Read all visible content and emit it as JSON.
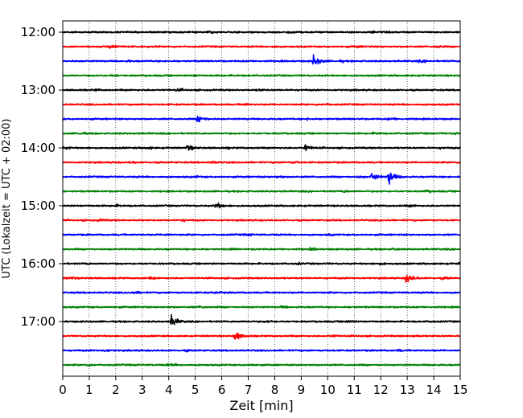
{
  "chart_data": {
    "type": "line",
    "title": "",
    "xlabel": "Zeit  [min]",
    "ylabel": "UTC (Lokalzeit = UTC + 02:00)",
    "xlim": [
      0,
      15
    ],
    "x_ticks": [
      0,
      1,
      2,
      3,
      4,
      5,
      6,
      7,
      8,
      9,
      10,
      11,
      12,
      13,
      14,
      15
    ],
    "y_ticks": [
      "12:00",
      "13:00",
      "14:00",
      "15:00",
      "16:00",
      "17:00"
    ],
    "grid": {
      "x": true,
      "y": false,
      "style": "dotted"
    },
    "trace_minutes": 15,
    "trace_colors": [
      "#000000",
      "#ff0000",
      "#0000ff",
      "#008000"
    ],
    "series": [
      {
        "start": "12:00",
        "color": "#000000",
        "events": []
      },
      {
        "start": "12:15",
        "color": "#ff0000",
        "events": [
          {
            "t": 1.75,
            "amp": 0.45
          }
        ]
      },
      {
        "start": "12:30",
        "color": "#0000ff",
        "events": [
          {
            "t": 9.45,
            "amp": 0.7
          }
        ]
      },
      {
        "start": "12:45",
        "color": "#008000",
        "events": []
      },
      {
        "start": "13:00",
        "color": "#000000",
        "events": []
      },
      {
        "start": "13:15",
        "color": "#ff0000",
        "events": []
      },
      {
        "start": "13:30",
        "color": "#0000ff",
        "events": [
          {
            "t": 5.1,
            "amp": 0.5
          }
        ]
      },
      {
        "start": "13:45",
        "color": "#008000",
        "events": []
      },
      {
        "start": "14:00",
        "color": "#000000",
        "events": [
          {
            "t": 4.7,
            "amp": 0.35
          },
          {
            "t": 9.15,
            "amp": 0.35
          }
        ]
      },
      {
        "start": "14:15",
        "color": "#ff0000",
        "events": []
      },
      {
        "start": "14:30",
        "color": "#0000ff",
        "events": [
          {
            "t": 11.65,
            "amp": 0.5
          },
          {
            "t": 12.3,
            "amp": 0.9
          }
        ]
      },
      {
        "start": "14:45",
        "color": "#008000",
        "events": []
      },
      {
        "start": "15:00",
        "color": "#000000",
        "events": [
          {
            "t": 5.75,
            "amp": 0.4
          }
        ]
      },
      {
        "start": "15:15",
        "color": "#ff0000",
        "events": []
      },
      {
        "start": "15:30",
        "color": "#0000ff",
        "events": []
      },
      {
        "start": "15:45",
        "color": "#008000",
        "events": []
      },
      {
        "start": "16:00",
        "color": "#000000",
        "events": []
      },
      {
        "start": "16:15",
        "color": "#ff0000",
        "events": [
          {
            "t": 12.95,
            "amp": 0.65
          }
        ]
      },
      {
        "start": "16:30",
        "color": "#0000ff",
        "events": []
      },
      {
        "start": "16:45",
        "color": "#008000",
        "events": []
      },
      {
        "start": "17:00",
        "color": "#000000",
        "events": [
          {
            "t": 4.1,
            "amp": 0.65
          }
        ]
      },
      {
        "start": "17:15",
        "color": "#ff0000",
        "events": [
          {
            "t": 6.5,
            "amp": 0.55
          }
        ]
      },
      {
        "start": "17:30",
        "color": "#0000ff",
        "events": []
      },
      {
        "start": "17:45",
        "color": "#008000",
        "events": []
      }
    ]
  }
}
